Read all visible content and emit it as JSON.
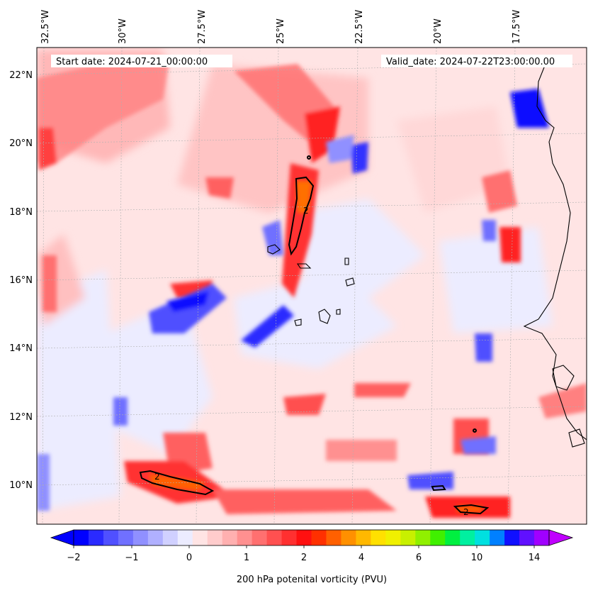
{
  "header": {
    "start_date": "Start date: 2024-07-21_00:00:00",
    "valid_date": "Valid_date: 2024-07-22T23:00:00.00"
  },
  "map": {
    "lon_labels": [
      "32.5°W",
      "30°W",
      "27.5°W",
      "25°W",
      "22.5°W",
      "20°W",
      "17.5°W"
    ],
    "lat_labels": [
      "22°N",
      "20°N",
      "18°N",
      "16°N",
      "14°N",
      "12°N",
      "10°N"
    ],
    "contour_label": "2"
  },
  "colorbar": {
    "ticks": [
      "−2",
      "−1",
      "0",
      "1",
      "2",
      "4",
      "6",
      "10",
      "14"
    ],
    "title": "200 hPa potenital vorticity (PVU)",
    "colors": [
      "#0000ff",
      "#2a2aff",
      "#5050ff",
      "#7070ff",
      "#9090ff",
      "#b0b0ff",
      "#d0d0ff",
      "#ececff",
      "#ffe4e4",
      "#ffcccc",
      "#ffb0b0",
      "#ff9090",
      "#ff7070",
      "#ff5050",
      "#ff3030",
      "#ff1010",
      "#ff3000",
      "#ff6000",
      "#ff9000",
      "#ffb800",
      "#ffe000",
      "#f0f000",
      "#c8f000",
      "#90f000",
      "#40f000",
      "#00f040",
      "#00f0a0",
      "#00e0e0",
      "#0080ff",
      "#1010ff",
      "#6010ff",
      "#a000ff"
    ]
  }
}
